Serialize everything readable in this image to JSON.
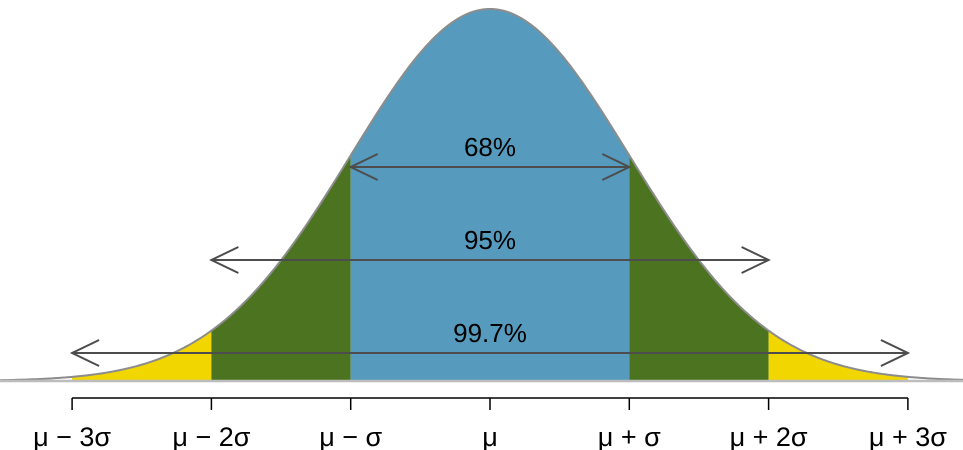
{
  "chart_data": {
    "type": "area",
    "title": "",
    "xlabel": "",
    "ylabel": "",
    "curve": "standard-normal",
    "xlim": [
      -3.55,
      3.55
    ],
    "grid": false,
    "legend": "none",
    "ticks": [
      {
        "x": -3,
        "label": "μ − 3σ"
      },
      {
        "x": -2,
        "label": "μ − 2σ"
      },
      {
        "x": -1,
        "label": "μ − σ"
      },
      {
        "x": 0,
        "label": "μ"
      },
      {
        "x": 1,
        "label": "μ + σ"
      },
      {
        "x": 2,
        "label": "μ + 2σ"
      },
      {
        "x": 3,
        "label": "μ + 3σ"
      }
    ],
    "regions": [
      {
        "from": -3,
        "to": -2,
        "color": "#F2D600"
      },
      {
        "from": -2,
        "to": -1,
        "color": "#4B7320"
      },
      {
        "from": -1,
        "to": 1,
        "color": "#569BBD"
      },
      {
        "from": 1,
        "to": 2,
        "color": "#4B7320"
      },
      {
        "from": 2,
        "to": 3,
        "color": "#F2D600"
      }
    ],
    "intervals": [
      {
        "label": "68%",
        "from": -1,
        "to": 1
      },
      {
        "label": "95%",
        "from": -2,
        "to": 2
      },
      {
        "label": "99.7%",
        "from": -3,
        "to": 3
      }
    ],
    "colors": {
      "curve": "#8C8C8C",
      "baseline": "#BDBDBD",
      "arrows": "#4D4D4D",
      "axis": "#000000"
    }
  }
}
